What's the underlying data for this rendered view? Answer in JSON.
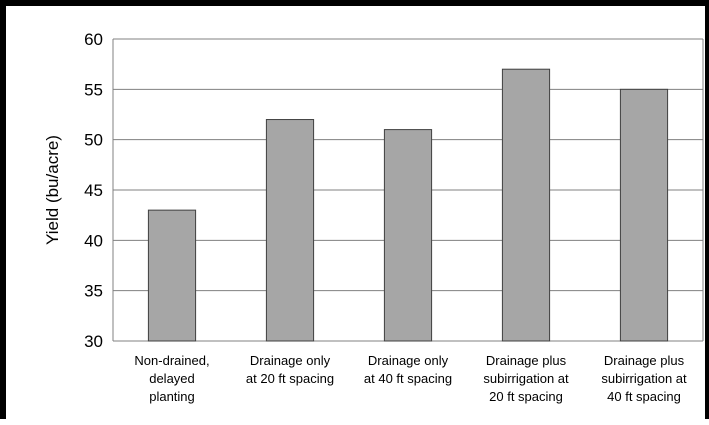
{
  "chart_data": {
    "type": "bar",
    "categories": [
      [
        "Non-drained,",
        "delayed",
        "planting"
      ],
      [
        "Drainage only",
        "at 20 ft spacing"
      ],
      [
        "Drainage only",
        "at 40 ft spacing"
      ],
      [
        "Drainage plus",
        "subirrigation at",
        "20 ft spacing"
      ],
      [
        "Drainage plus",
        "subirrigation at",
        "40 ft spacing"
      ]
    ],
    "values": [
      43,
      52,
      51,
      57,
      55
    ],
    "ylabel": "Yield (bu/acre)",
    "xlabel": "",
    "ylim": [
      30,
      60
    ],
    "yticks": [
      30,
      35,
      40,
      45,
      50,
      55,
      60
    ],
    "grid": true,
    "legend": "none",
    "colors": {
      "bar_fill": "#a6a6a6",
      "bar_stroke": "#404040",
      "grid": "#808080",
      "axis": "#808080"
    }
  }
}
